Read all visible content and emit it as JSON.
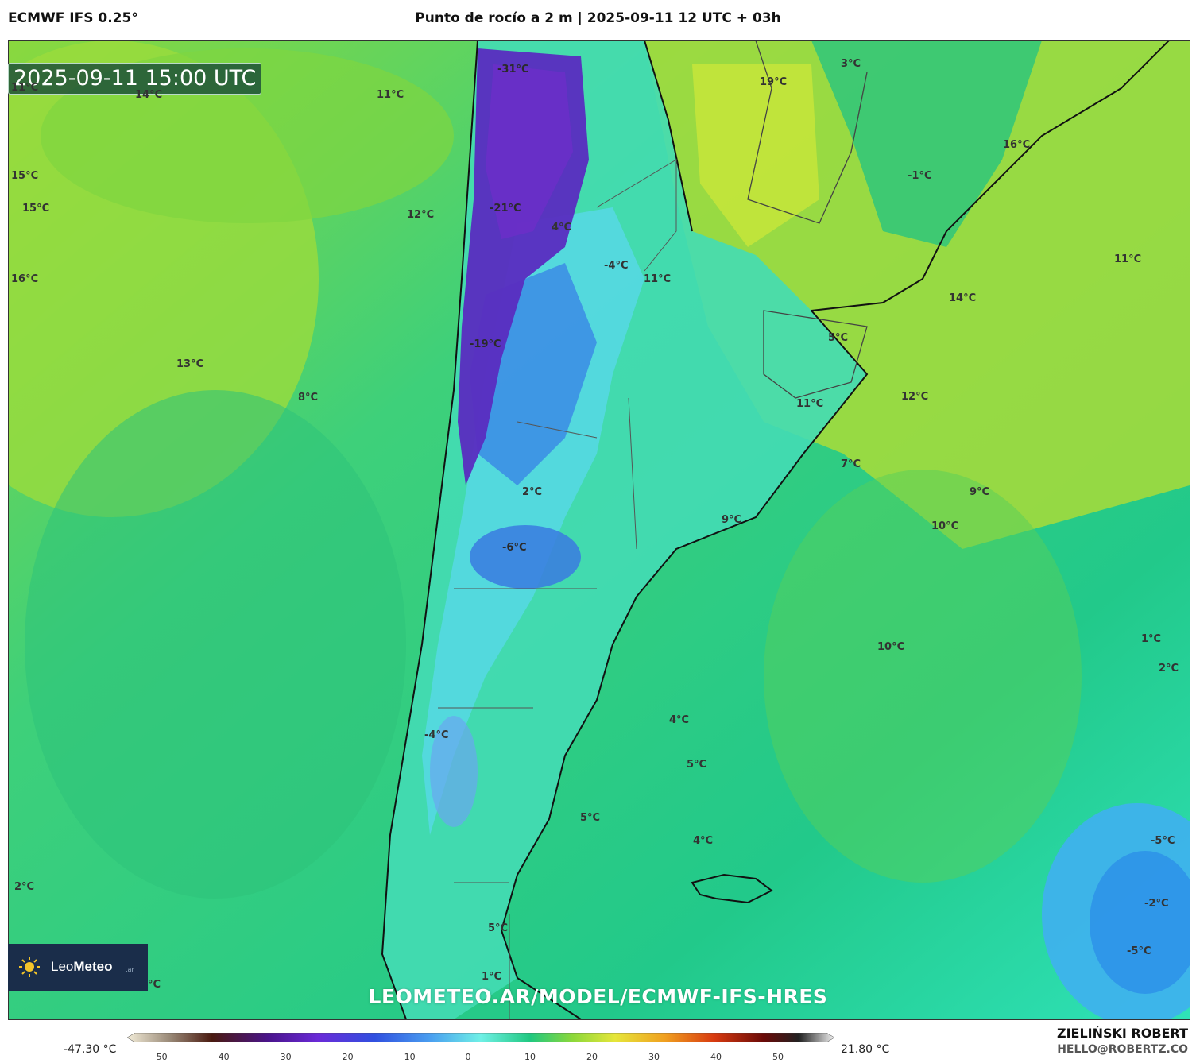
{
  "header": {
    "model": "ECMWF IFS 0.25°",
    "title": "Punto de rocío a 2 m | 2025-09-11 12 UTC + 03h"
  },
  "map": {
    "valid_time": "2025-09-11 15:00 UTC",
    "url": "LEOMETEO.AR/MODEL/ECMWF-IFS-HRES",
    "labels": [
      "11°C",
      "14°C",
      "11°C",
      "15°C",
      "15°C",
      "12°C",
      "16°C",
      "13°C",
      "8°C",
      "-31°C",
      "-21°C",
      "4°C",
      "-4°C",
      "11°C",
      "-19°C",
      "2°C",
      "-6°C",
      "-4°C",
      "5°C",
      "1°C",
      "3°C",
      "19°C",
      "16°C",
      "-1°C",
      "11°C",
      "14°C",
      "5°C",
      "11°C",
      "12°C",
      "7°C",
      "9°C",
      "9°C",
      "10°C",
      "10°C",
      "4°C",
      "5°C",
      "5°C",
      "4°C",
      "1°C",
      "2°C",
      "-5°C",
      "-2°C",
      "-5°C",
      "2°C",
      "°C"
    ]
  },
  "logo": {
    "brand_light": "Leo",
    "brand_bold": "Meteo",
    "tld": ".ar"
  },
  "colorbar": {
    "min_label": "-47.30 °C",
    "max_label": "21.80 °C",
    "ticks": [
      "−50",
      "−40",
      "−30",
      "−20",
      "−10",
      "0",
      "10",
      "20",
      "30",
      "40",
      "50"
    ]
  },
  "credits": {
    "author": "ZIELIŃSKI ROBERT",
    "email": "HELLO@ROBERTZ.CO"
  },
  "colors": {
    "land_cold": "#4b2ca8",
    "ocean_mid": "#2ecf8a",
    "ocean_warm": "#8edc3a",
    "warm_yellow": "#c9e63a",
    "cold_blue": "#4fa0f0",
    "cyan": "#52e8c8"
  }
}
